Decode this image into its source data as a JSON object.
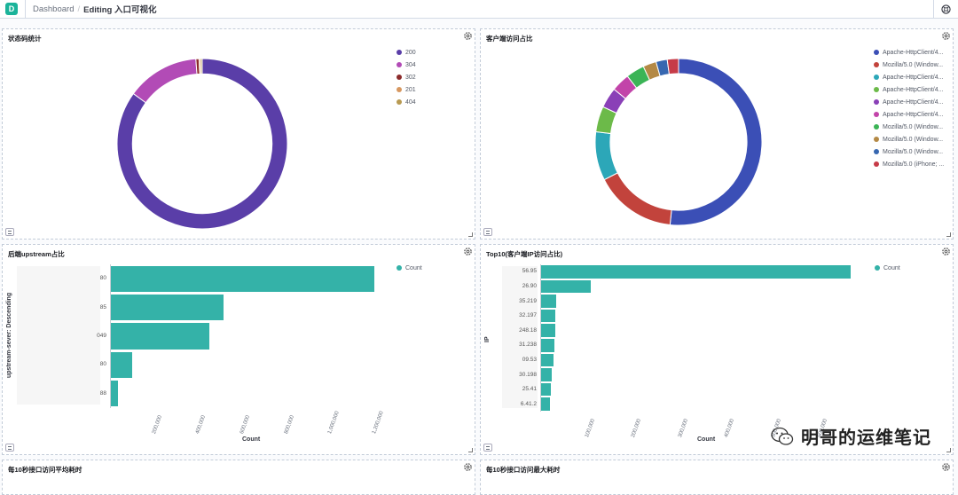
{
  "topbar": {
    "logo": "D",
    "crumb_root": "Dashboard",
    "crumb_current": "Editing 入口可视化"
  },
  "panels": {
    "status": {
      "title": "状态码统计",
      "chart_data": {
        "type": "pie",
        "labels": [
          "200",
          "304",
          "302",
          "201",
          "404"
        ],
        "values": [
          85.0,
          13.8,
          0.6,
          0.3,
          0.3
        ],
        "colors": [
          "#5a3ea8",
          "#b24bb6",
          "#8b2b2b",
          "#d79860",
          "#b89a52"
        ]
      }
    },
    "client": {
      "title": "客户端访问占比",
      "chart_data": {
        "type": "pie",
        "labels": [
          "Apache-HttpClient/4...",
          "Mozilla/5.0 (Window...",
          "Apache-HttpClient/4...",
          "Apache-HttpClient/4...",
          "Apache-HttpClient/4...",
          "Apache-HttpClient/4...",
          "Mozilla/5.0 (Window...",
          "Mozilla/5.0 (Window...",
          "Mozilla/5.0 (Window...",
          "Mozilla/5.0 (iPhone; ..."
        ],
        "values": [
          52.0,
          16.0,
          9.5,
          5.0,
          4.0,
          3.6,
          3.6,
          2.6,
          2.2,
          2.2
        ],
        "colors": [
          "#3b4fb6",
          "#c2433c",
          "#2ca7b8",
          "#6cba49",
          "#8a40b7",
          "#c244a9",
          "#3bb456",
          "#b48945",
          "#3767b0",
          "#c63b48"
        ]
      }
    },
    "upstream": {
      "title": "后端upstream占比",
      "y_title": "upstream-sever: Descending",
      "x_title": "Count",
      "legend": "Count",
      "chart_data": {
        "type": "bar",
        "orientation": "horizontal",
        "categories": [
          "80",
          "85",
          "049",
          "80",
          "88"
        ],
        "values": [
          1200000,
          515000,
          450000,
          100000,
          35000
        ],
        "xticks": [
          "200,000",
          "400,000",
          "600,000",
          "800,000",
          "1,000,000",
          "1,200,000"
        ],
        "xlim": [
          0,
          1280000
        ],
        "color": "#34b2a8"
      }
    },
    "top10": {
      "title": "Top10(客户端IP访问占比)",
      "y_title": "IP",
      "x_title": "Count",
      "legend": "Count",
      "chart_data": {
        "type": "bar",
        "orientation": "horizontal",
        "categories": [
          "56.95",
          "26.90",
          "35.219",
          "32.197",
          "248.18",
          "31.238",
          "09.53",
          "30.198",
          "25.41",
          "6.41.2"
        ],
        "values": [
          665000,
          108000,
          34000,
          33000,
          32000,
          31000,
          28000,
          24000,
          22000,
          20000
        ],
        "xticks": [
          "100,000",
          "200,000",
          "300,000",
          "400,000",
          "500,000",
          "600,000"
        ],
        "xlim": [
          0,
          700000
        ],
        "color": "#34b2a8"
      }
    },
    "avg": {
      "title": "每10秒接口访问平均耗时"
    },
    "max": {
      "title": "每10秒接口访问最大耗时"
    }
  },
  "watermark": "明哥的运维笔记"
}
